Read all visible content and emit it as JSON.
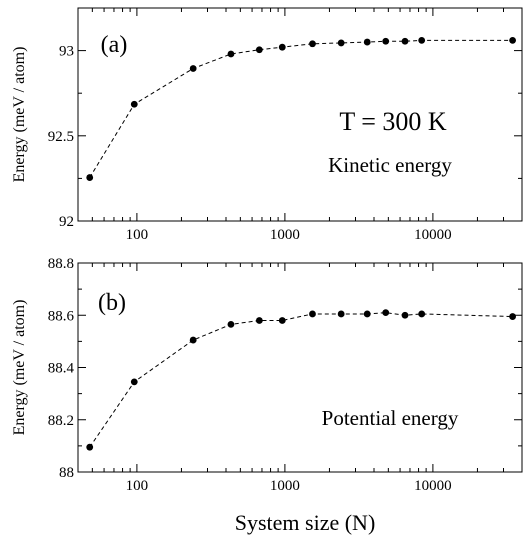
{
  "chart_data": [
    {
      "type": "line",
      "panel_label": "(a)",
      "annotations": [
        "T = 300 K",
        "Kinetic energy"
      ],
      "xlabel": "",
      "ylabel": "Energy (meV / atom)",
      "xscale": "log",
      "xlim": [
        40,
        40000
      ],
      "ylim": [
        92,
        93.25
      ],
      "xticks": [
        100,
        1000,
        10000
      ],
      "xtick_labels": [
        "100",
        "1000",
        "10000"
      ],
      "yticks": [
        92,
        92.5,
        93
      ],
      "ytick_labels": [
        "92",
        "92.5",
        "93"
      ],
      "line_style": "dashed",
      "marker": "filled-circle",
      "series": [
        {
          "x": [
            48,
            96,
            240,
            432,
            672,
            960,
            1536,
            2400,
            3600,
            4800,
            6480,
            8400,
            34560
          ],
          "y": [
            92.255,
            92.685,
            92.895,
            92.98,
            93.005,
            93.02,
            93.04,
            93.045,
            93.05,
            93.055,
            93.055,
            93.06,
            93.06
          ]
        }
      ]
    },
    {
      "type": "line",
      "panel_label": "(b)",
      "annotations": [
        "Potential energy"
      ],
      "xlabel": "System size (N)",
      "ylabel": "Energy (meV / atom)",
      "xscale": "log",
      "xlim": [
        40,
        40000
      ],
      "ylim": [
        88,
        88.8
      ],
      "xticks": [
        100,
        1000,
        10000
      ],
      "xtick_labels": [
        "100",
        "1000",
        "10000"
      ],
      "yticks": [
        88,
        88.2,
        88.4,
        88.6,
        88.8
      ],
      "ytick_labels": [
        "88",
        "88.2",
        "88.4",
        "88.6",
        "88.8"
      ],
      "line_style": "dashed",
      "marker": "filled-circle",
      "series": [
        {
          "x": [
            48,
            96,
            240,
            432,
            672,
            960,
            1536,
            2400,
            3600,
            4800,
            6480,
            8400,
            34560
          ],
          "y": [
            88.095,
            88.345,
            88.505,
            88.565,
            88.58,
            88.58,
            88.605,
            88.605,
            88.605,
            88.61,
            88.6,
            88.605,
            88.595
          ]
        }
      ]
    }
  ]
}
